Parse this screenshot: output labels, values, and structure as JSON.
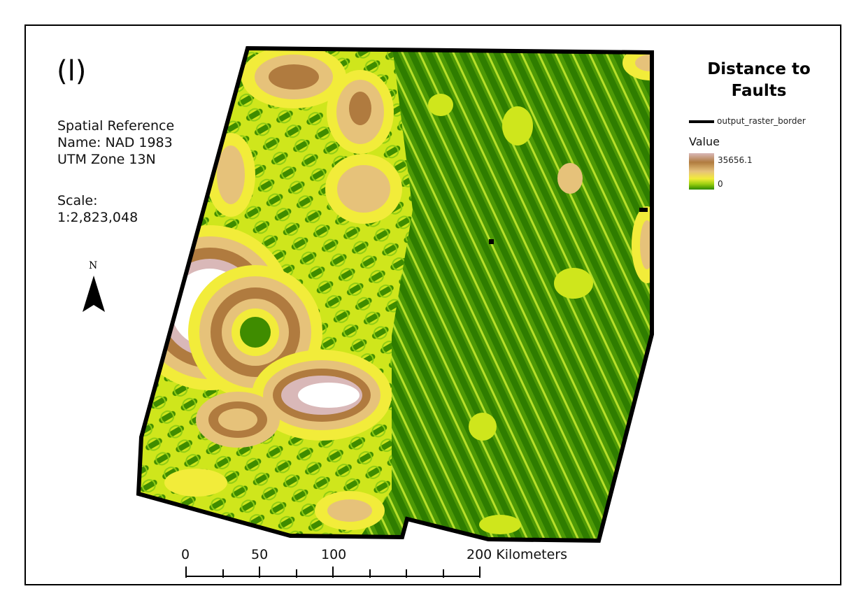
{
  "panel": {
    "label": "(l)"
  },
  "info": {
    "spatial_reference": "Spatial Reference",
    "name": "Name: NAD 1983",
    "zone": "UTM Zone 13N",
    "scale_label": "Scale:",
    "scale_value": "1:2,823,048"
  },
  "north_arrow": {
    "label": "N"
  },
  "legend": {
    "title_line1": "Distance to",
    "title_line2": "Faults",
    "border_label": "output_raster_border",
    "value_label": "Value",
    "max": "35656.1",
    "min": "0"
  },
  "scale_bar": {
    "labels": [
      "0",
      "50",
      "100",
      "200 Kilometers"
    ]
  },
  "colors": {
    "near": "#2f7d00",
    "mid": "#9bcf10",
    "yellow": "#f2ec3a",
    "tan": "#e6c27a",
    "brown": "#b07b3f",
    "far": "#ffffff"
  }
}
